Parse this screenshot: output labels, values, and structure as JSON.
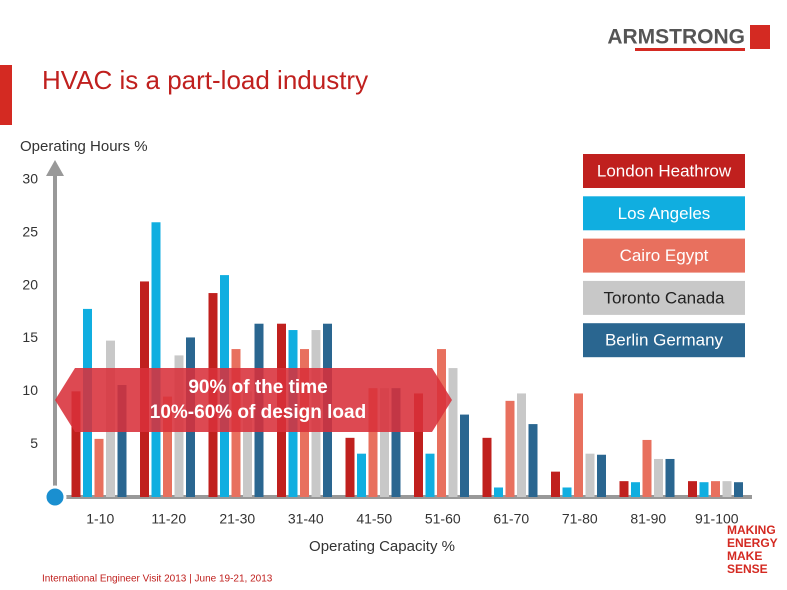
{
  "slide": {
    "logo": "ARMSTRONG",
    "title": "HVAC is a part-load industry",
    "footer": "International Engineer Visit 2013  |  June 19-21, 2013",
    "tagline": [
      "MAKING",
      "ENERGY",
      "MAKE",
      "SENSE"
    ]
  },
  "chart_data": {
    "type": "bar",
    "y_label": "Operating Hours %",
    "x_label": "Operating Capacity %",
    "categories": [
      "1-10",
      "11-20",
      "21-30",
      "31-40",
      "41-50",
      "51-60",
      "61-70",
      "71-80",
      "81-90",
      "91-100"
    ],
    "series": [
      {
        "name": "London Heathrow",
        "color": "#c0201e",
        "values": [
          10,
          20.4,
          19.3,
          16.4,
          5.6,
          9.8,
          5.6,
          2.4,
          1.5,
          1.5
        ]
      },
      {
        "name": "Los Angeles",
        "color": "#10aee0",
        "values": [
          17.8,
          26,
          21,
          15.8,
          4.1,
          4.1,
          0.9,
          0.9,
          1.4,
          1.4
        ]
      },
      {
        "name": "Cairo Egypt",
        "color": "#e8705e",
        "values": [
          5.5,
          9.5,
          14,
          14,
          10.3,
          14,
          9.1,
          9.8,
          5.4,
          1.5
        ]
      },
      {
        "name": "Toronto Canada",
        "color": "#c8c8c8",
        "values": [
          14.8,
          13.4,
          10,
          15.8,
          10.3,
          12.2,
          9.8,
          4.1,
          3.6,
          1.5
        ]
      },
      {
        "name": "Berlin Germany",
        "color": "#2a6690",
        "values": [
          10.6,
          15.1,
          16.4,
          16.4,
          10.3,
          7.8,
          6.9,
          4.0,
          3.6,
          1.4
        ]
      }
    ],
    "ylim": [
      0,
      30
    ],
    "yticks": [
      5,
      10,
      15,
      20,
      25,
      30
    ],
    "grid": false,
    "legend": "top-right",
    "annotations": [
      "90% of the time",
      "10%-60% of design load"
    ]
  }
}
